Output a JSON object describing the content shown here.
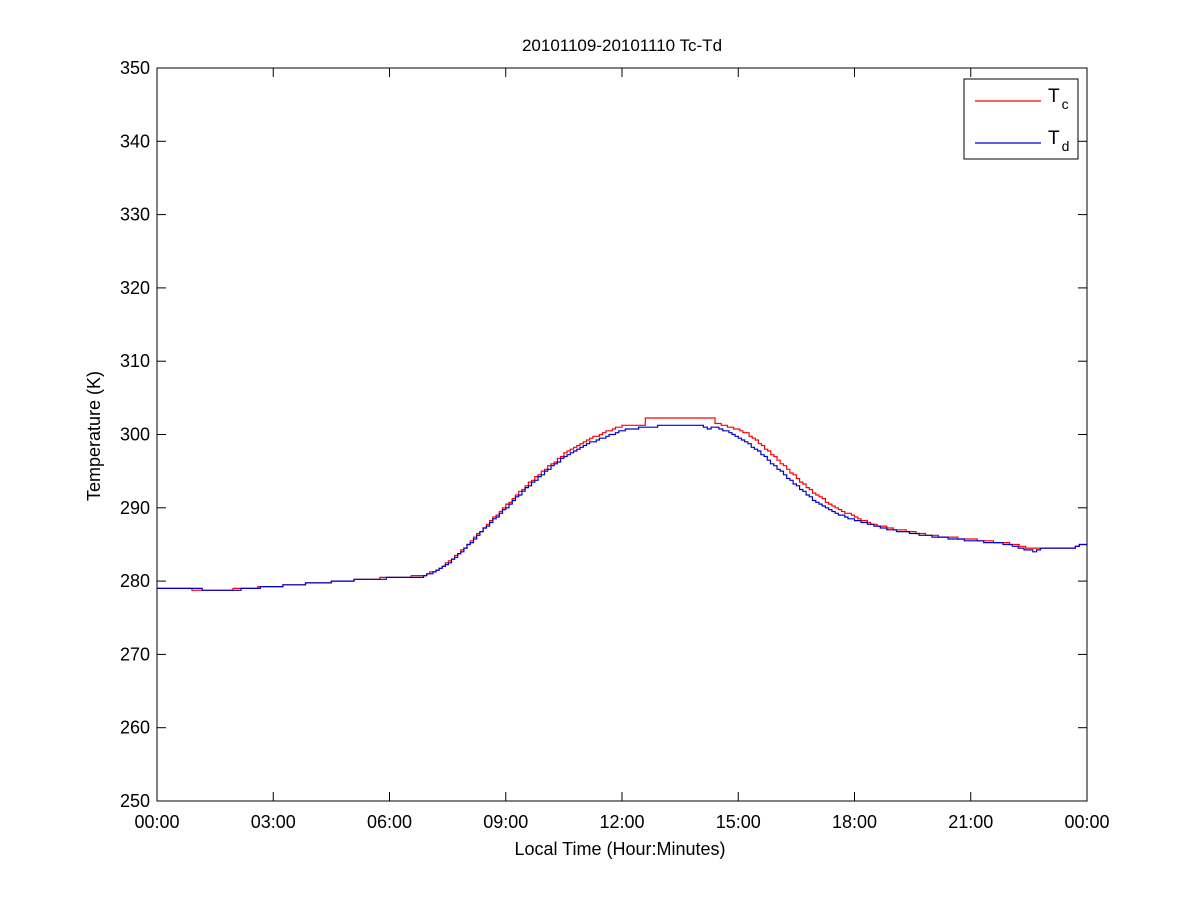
{
  "chart_data": {
    "type": "line",
    "title": "20101109-20101110 Tc-Td",
    "xlabel": "Local Time (Hour:Minutes)",
    "ylabel": "Temperature (K)",
    "xlim": [
      0,
      24
    ],
    "ylim": [
      250,
      350
    ],
    "x_tick_values": [
      0,
      3,
      6,
      9,
      12,
      15,
      18,
      21,
      24
    ],
    "x_tick_labels": [
      "00:00",
      "03:00",
      "06:00",
      "09:00",
      "12:00",
      "15:00",
      "18:00",
      "21:00",
      "00:00"
    ],
    "y_ticks": [
      250,
      260,
      270,
      280,
      290,
      300,
      310,
      320,
      330,
      340,
      350
    ],
    "grid": false,
    "legend_position": "top-right",
    "series": [
      {
        "name": "Tc",
        "name_base": "T",
        "name_sub": "c",
        "color": "#ff0000",
        "points": [
          [
            0.0,
            279.0
          ],
          [
            0.9,
            279.0
          ],
          [
            0.9,
            278.8
          ],
          [
            1.8,
            278.8
          ],
          [
            2.2,
            279.0
          ],
          [
            3.0,
            279.3
          ],
          [
            4.0,
            279.7
          ],
          [
            5.0,
            280.1
          ],
          [
            6.0,
            280.5
          ],
          [
            6.8,
            280.7
          ],
          [
            7.2,
            281.5
          ],
          [
            7.6,
            283.0
          ],
          [
            8.0,
            285.0
          ],
          [
            8.5,
            287.8
          ],
          [
            9.0,
            290.4
          ],
          [
            9.5,
            293.0
          ],
          [
            10.0,
            295.3
          ],
          [
            10.5,
            297.4
          ],
          [
            11.0,
            299.0
          ],
          [
            11.5,
            300.3
          ],
          [
            12.0,
            301.2
          ],
          [
            12.6,
            301.2
          ],
          [
            12.6,
            302.2
          ],
          [
            14.4,
            302.2
          ],
          [
            14.4,
            301.5
          ],
          [
            14.8,
            301.0
          ],
          [
            15.2,
            300.2
          ],
          [
            15.6,
            298.5
          ],
          [
            16.0,
            296.5
          ],
          [
            16.5,
            294.0
          ],
          [
            17.0,
            291.7
          ],
          [
            17.5,
            290.0
          ],
          [
            18.0,
            288.7
          ],
          [
            18.5,
            287.7
          ],
          [
            19.0,
            287.1
          ],
          [
            20.0,
            286.2
          ],
          [
            21.0,
            285.7
          ],
          [
            22.0,
            285.1
          ],
          [
            22.5,
            284.5
          ],
          [
            23.0,
            284.5
          ],
          [
            23.6,
            284.6
          ],
          [
            23.8,
            285.0
          ],
          [
            24.0,
            285.0
          ]
        ]
      },
      {
        "name": "Td",
        "name_base": "T",
        "name_sub": "d",
        "color": "#0000cc",
        "points": [
          [
            0.0,
            279.0
          ],
          [
            1.0,
            278.9
          ],
          [
            1.5,
            278.8
          ],
          [
            2.0,
            278.8
          ],
          [
            3.0,
            279.3
          ],
          [
            4.0,
            279.7
          ],
          [
            5.0,
            280.1
          ],
          [
            6.0,
            280.4
          ],
          [
            6.8,
            280.6
          ],
          [
            7.2,
            281.4
          ],
          [
            7.6,
            282.9
          ],
          [
            8.0,
            284.9
          ],
          [
            8.5,
            287.6
          ],
          [
            9.0,
            290.1
          ],
          [
            9.5,
            292.7
          ],
          [
            10.0,
            295.0
          ],
          [
            10.5,
            297.0
          ],
          [
            11.0,
            298.6
          ],
          [
            11.5,
            299.6
          ],
          [
            12.0,
            300.6
          ],
          [
            12.6,
            301.0
          ],
          [
            13.0,
            301.2
          ],
          [
            14.0,
            301.2
          ],
          [
            14.2,
            300.8
          ],
          [
            14.4,
            301.0
          ],
          [
            14.6,
            300.6
          ],
          [
            15.0,
            299.6
          ],
          [
            15.5,
            297.7
          ],
          [
            16.0,
            295.3
          ],
          [
            16.5,
            292.9
          ],
          [
            17.0,
            290.7
          ],
          [
            17.5,
            289.2
          ],
          [
            18.0,
            288.3
          ],
          [
            18.5,
            287.5
          ],
          [
            19.0,
            286.9
          ],
          [
            20.0,
            286.1
          ],
          [
            21.0,
            285.5
          ],
          [
            22.0,
            285.0
          ],
          [
            22.3,
            284.4
          ],
          [
            22.6,
            284.1
          ],
          [
            22.8,
            284.5
          ],
          [
            23.6,
            284.5
          ],
          [
            23.8,
            284.9
          ],
          [
            24.0,
            285.0
          ]
        ]
      }
    ]
  }
}
